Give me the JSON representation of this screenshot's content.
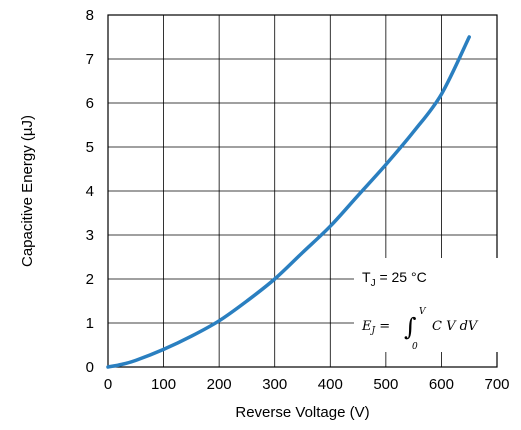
{
  "chart_data": {
    "type": "line",
    "title": "",
    "xlabel": "Reverse Voltage (V)",
    "ylabel": "Capacitive Energy (µJ)",
    "xlim": [
      0,
      700
    ],
    "ylim": [
      0,
      8
    ],
    "xticks": [
      0,
      100,
      200,
      300,
      400,
      500,
      600,
      700
    ],
    "yticks": [
      0,
      1,
      2,
      3,
      4,
      5,
      6,
      7,
      8
    ],
    "grid": true,
    "line_color": "#2a7fc0",
    "series": [
      {
        "name": "",
        "x": [
          0,
          25,
          50,
          100,
          150,
          200,
          250,
          300,
          350,
          400,
          450,
          500,
          550,
          600,
          650
        ],
        "y": [
          0,
          0.06,
          0.15,
          0.4,
          0.7,
          1.05,
          1.5,
          2.0,
          2.6,
          3.2,
          3.9,
          4.6,
          5.35,
          6.2,
          7.5
        ]
      }
    ],
    "annotations": {
      "condition_T": "T",
      "condition_sub": "J",
      "condition_rest": " = 25 °C",
      "formula_lhs": "E",
      "formula_lhs_sub": "J",
      "formula_eq": " = ",
      "formula_int": "∫",
      "formula_upper": "V",
      "formula_lower": "0",
      "formula_body": "C V dV"
    }
  }
}
